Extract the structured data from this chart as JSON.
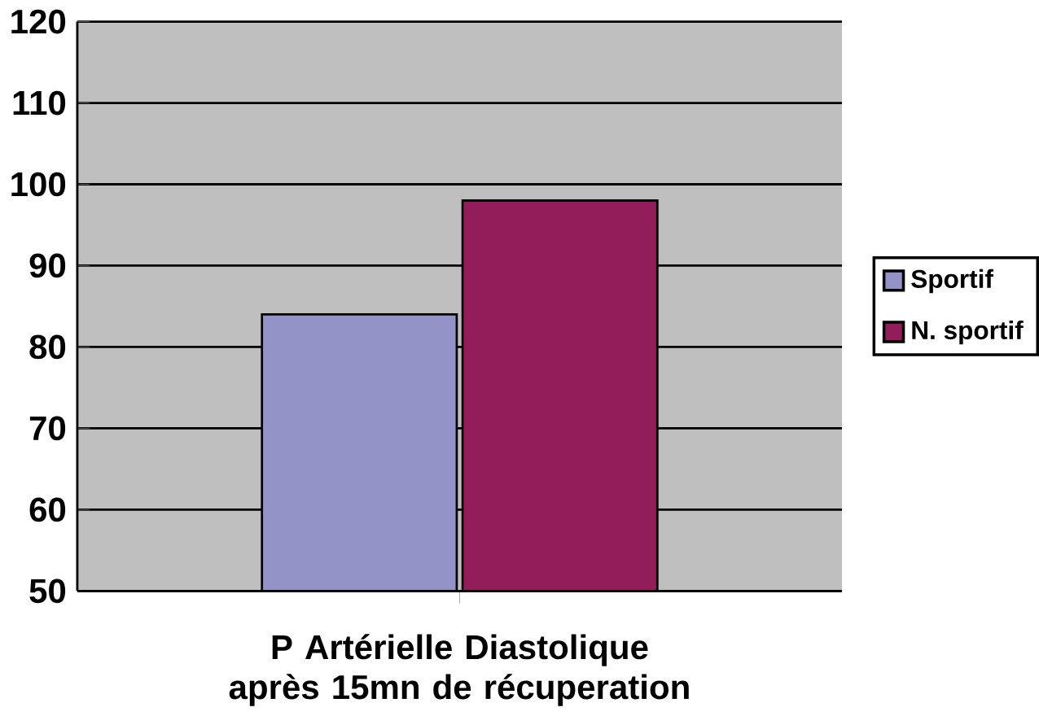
{
  "chart_data": {
    "type": "bar",
    "xlabel": "P Artérielle Diastolique après 15mn de récuperation",
    "categories": [
      null
    ],
    "series": [
      {
        "name": "Sportif",
        "color": "#9393c8",
        "values": [
          84
        ]
      },
      {
        "name": "N. sportif",
        "color": "#921d5a",
        "values": [
          98
        ]
      }
    ],
    "ylim": [
      50,
      120
    ],
    "yticks": [
      50,
      60,
      70,
      80,
      90,
      100,
      110,
      120
    ],
    "grid": "y",
    "legend": "right"
  }
}
